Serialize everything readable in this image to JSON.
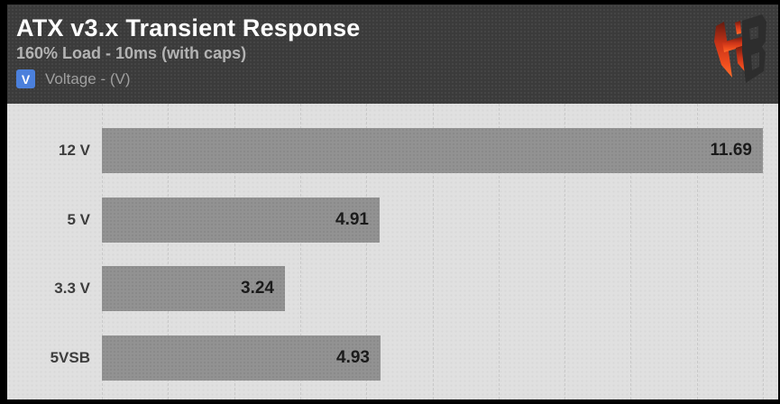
{
  "window": {
    "frame_color": "#000000"
  },
  "header": {
    "title": "ATX v3.x Transient Response",
    "subtitle": "160% Load - 10ms (with caps)",
    "background": "#3b3b3b",
    "title_color": "#ffffff",
    "subtitle_color": "#b3b3b3",
    "legend": {
      "symbol": "V",
      "symbol_color": "#4b80dc",
      "label": "Voltage - (V)",
      "label_color": "#9f9f9f"
    },
    "logo": "hardware-busters-logo"
  },
  "chart_data": {
    "type": "bar",
    "orientation": "horizontal",
    "title": "ATX v3.x Transient Response",
    "subtitle": "160% Load - 10ms (with caps)",
    "legend_entries": [
      "Voltage - (V)"
    ],
    "categories": [
      "12 V",
      "5 V",
      "3.3 V",
      "5VSB"
    ],
    "values": [
      11.69,
      4.91,
      3.24,
      4.93
    ],
    "value_labels": [
      "11.69",
      "4.91",
      "3.24",
      "4.93"
    ],
    "xlabel": "",
    "ylabel": "",
    "xlim": [
      0,
      11.69
    ],
    "grid": true,
    "grid_divisions": 10,
    "gridline_color": "#c9c9c9",
    "bar_color": "#929292",
    "plot_background": "#e0e0e0",
    "label_color": "#3d3d3d",
    "value_color": "#1b1b1b"
  }
}
